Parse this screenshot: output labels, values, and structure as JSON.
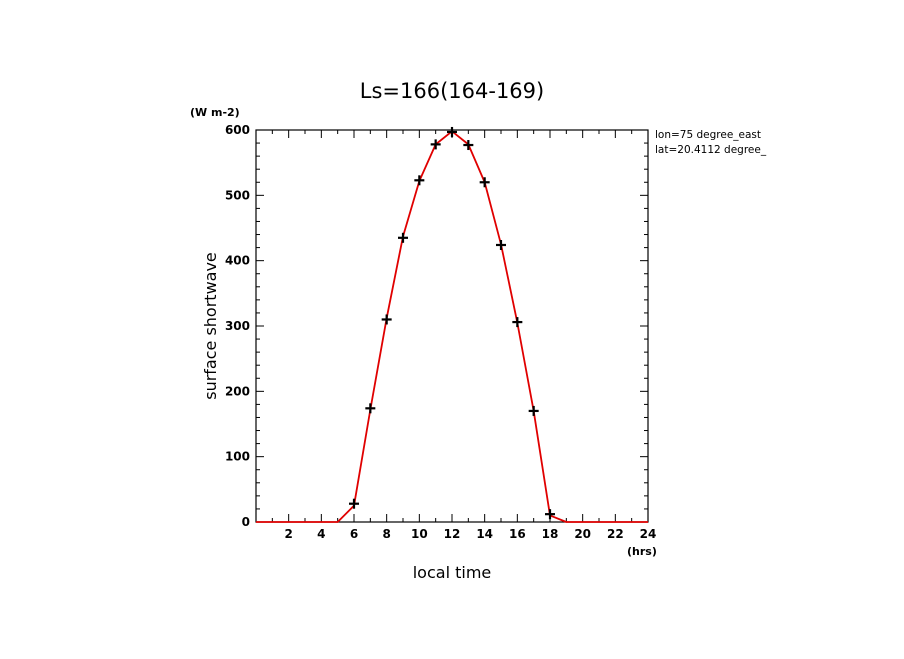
{
  "chart_data": {
    "type": "line",
    "title": "Ls=166(164-169)",
    "xlabel": "local time",
    "ylabel": "surface shortwave",
    "x_unit": "(hrs)",
    "y_unit": "(W m-2)",
    "xlim": [
      0,
      24
    ],
    "ylim": [
      0,
      600
    ],
    "x_ticks": [
      2,
      4,
      6,
      8,
      10,
      12,
      14,
      16,
      18,
      20,
      22,
      24
    ],
    "y_ticks": [
      0,
      100,
      200,
      300,
      400,
      500,
      600
    ],
    "annotations": [
      "lon=75 degree_east",
      "lat=20.4112 degree_"
    ],
    "grid": false,
    "line_color": "#e00000",
    "marker_color": "#000000",
    "line": {
      "x": [
        0,
        1,
        2,
        3,
        4,
        5,
        6,
        7,
        8,
        9,
        10,
        11,
        12,
        13,
        14,
        15,
        16,
        17,
        18,
        19,
        20,
        21,
        22,
        23,
        24
      ],
      "y": [
        0,
        0,
        0,
        0,
        0,
        0,
        25,
        172,
        312,
        437,
        522,
        578,
        598,
        578,
        520,
        425,
        305,
        170,
        10,
        0,
        0,
        0,
        0,
        0,
        0
      ]
    },
    "markers": {
      "x": [
        6,
        7,
        8,
        9,
        10,
        11,
        12,
        13,
        14,
        15,
        16,
        17,
        18
      ],
      "y": [
        28,
        174,
        310,
        435,
        523,
        578,
        597,
        577,
        520,
        424,
        306,
        170,
        12
      ]
    }
  }
}
